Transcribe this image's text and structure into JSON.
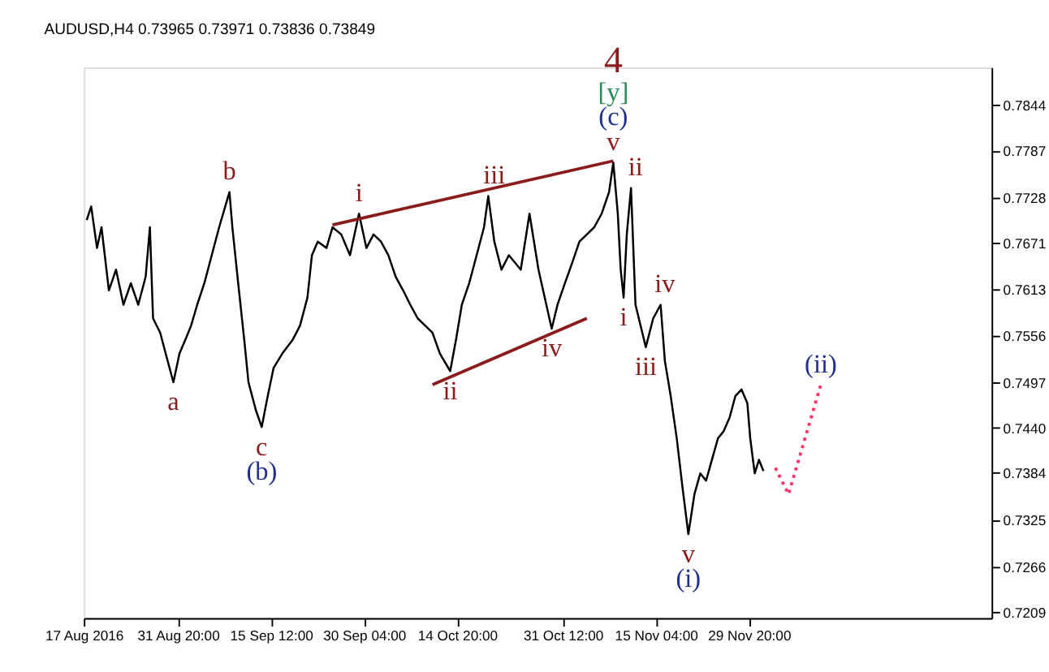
{
  "chart_data": {
    "type": "line",
    "title": "AUDUSD,H4  0.73965 0.73971 0.73836 0.73849",
    "xlim": [
      "2016-08-17T00:00",
      "2017-01-07T02:00"
    ],
    "xticks": [
      {
        "value": "2016-08-17T00:00",
        "label": "17 Aug 2016"
      },
      {
        "value": "2016-08-31T20:00",
        "label": "31 Aug 20:00"
      },
      {
        "value": "2016-09-15T12:00",
        "label": "15 Sep 12:00"
      },
      {
        "value": "2016-09-30T04:00",
        "label": "30 Sep 04:00"
      },
      {
        "value": "2016-10-14T20:00",
        "label": "14 Oct 20:00"
      },
      {
        "value": "2016-10-31T12:00",
        "label": "31 Oct 12:00"
      },
      {
        "value": "2016-11-15T04:00",
        "label": "15 Nov 04:00"
      },
      {
        "value": "2016-11-29T20:00",
        "label": "29 Nov 20:00"
      }
    ],
    "ylim": [
      0.7202,
      0.7891
    ],
    "yticks": [
      0.7209,
      0.7266,
      0.7325,
      0.7384,
      {
        "value": 0.744,
        "label": "0.7440"
      },
      0.7497,
      0.7556,
      0.7613,
      0.7671,
      0.7728,
      0.7787,
      0.7844
    ],
    "grid": false,
    "marker": "none",
    "series": [
      {
        "color": "#000000",
        "x": [
          "2016-08-17T11:00",
          "2016-08-18T04:00",
          "2016-08-19T02:00",
          "2016-08-19T19:00",
          "2016-08-20T23:00",
          "2016-08-22T02:00",
          "2016-08-23T06:00",
          "2016-08-24T10:00",
          "2016-08-25T14:00",
          "2016-08-26T18:00",
          "2016-08-27T10:00",
          "2016-08-27T22:00",
          "2016-08-29T01:00",
          "2016-08-30T05:00",
          "2016-08-31T03:00",
          "2016-09-01T02:00",
          "2016-09-02T00:00",
          "2016-09-02T22:00",
          "2016-09-03T21:00",
          "2016-09-05T00:00",
          "2016-09-06T04:00",
          "2016-09-07T08:00",
          "2016-09-08T23:00",
          "2016-09-09T10:00",
          "2016-09-10T08:00",
          "2016-09-11T07:00",
          "2016-09-11T23:00",
          "2016-09-13T03:00",
          "2016-09-14T01:00",
          "2016-09-15T00:00",
          "2016-09-15T22:00",
          "2016-09-17T07:00",
          "2016-09-18T22:00",
          "2016-09-20T02:00",
          "2016-09-21T06:00",
          "2016-09-21T23:00",
          "2016-09-22T21:00",
          "2016-09-24T06:00",
          "2016-09-25T05:00",
          "2016-09-26T14:00",
          "2016-09-27T23:00",
          "2016-09-29T09:00",
          "2016-09-30T13:00",
          "2016-10-01T16:00",
          "2016-10-02T20:00",
          "2016-10-04T00:00",
          "2016-10-05T04:00",
          "2016-10-06T08:00",
          "2016-10-07T11:00",
          "2016-10-08T15:00",
          "2016-10-09T19:00",
          "2016-10-10T23:00",
          "2016-10-12T03:00",
          "2016-10-13T18:00",
          "2016-10-14T16:00",
          "2016-10-15T14:00",
          "2016-10-16T18:00",
          "2016-10-17T22:00",
          "2016-10-19T02:00",
          "2016-10-19T18:00",
          "2016-10-20T17:00",
          "2016-10-21T20:00",
          "2016-10-23T00:00",
          "2016-10-24T21:00",
          "2016-10-26T06:00",
          "2016-10-27T16:00",
          "2016-10-29T18:00",
          "2016-10-30T16:00",
          "2016-10-31T20:00",
          "2016-11-02T00:00",
          "2016-11-03T03:00",
          "2016-11-04T07:00",
          "2016-11-05T11:00",
          "2016-11-06T15:00",
          "2016-11-07T19:00",
          "2016-11-08T11:00",
          "2016-11-09T04:00",
          "2016-11-09T15:00",
          "2016-11-10T02:00",
          "2016-11-10T14:00",
          "2016-11-11T06:00",
          "2016-11-11T23:00",
          "2016-11-13T14:00",
          "2016-11-14T18:00",
          "2016-11-15T22:00",
          "2016-11-16T14:00",
          "2016-11-17T12:00",
          "2016-11-18T11:00",
          "2016-11-19T09:00",
          "2016-11-20T07:00",
          "2016-11-21T06:00",
          "2016-11-22T04:00",
          "2016-11-23T02:00",
          "2016-11-24T00:00",
          "2016-11-24T23:00",
          "2016-11-25T21:00",
          "2016-11-26T19:00",
          "2016-11-27T17:00",
          "2016-11-28T16:00",
          "2016-11-29T14:00",
          "2016-11-30T01:00",
          "2016-11-30T18:00",
          "2016-12-01T10:00",
          "2016-12-02T03:00"
        ],
        "values": [
          0.77,
          0.7717,
          0.7665,
          0.7691,
          0.7612,
          0.7638,
          0.7594,
          0.7621,
          0.7594,
          0.7629,
          0.7691,
          0.7577,
          0.7559,
          0.7524,
          0.7497,
          0.7533,
          0.755,
          0.7568,
          0.7594,
          0.7621,
          0.7656,
          0.7691,
          0.7735,
          0.7691,
          0.7621,
          0.755,
          0.7497,
          0.7462,
          0.7441,
          0.748,
          0.7515,
          0.7533,
          0.755,
          0.7568,
          0.7603,
          0.7656,
          0.7673,
          0.7665,
          0.7691,
          0.7682,
          0.7656,
          0.7708,
          0.7665,
          0.7682,
          0.7673,
          0.7656,
          0.7629,
          0.7612,
          0.7594,
          0.7577,
          0.7568,
          0.7559,
          0.7533,
          0.7511,
          0.755,
          0.7594,
          0.7621,
          0.7656,
          0.7691,
          0.773,
          0.7673,
          0.7638,
          0.7656,
          0.7638,
          0.7708,
          0.7638,
          0.7564,
          0.7594,
          0.7621,
          0.7647,
          0.7673,
          0.7682,
          0.7691,
          0.7708,
          0.7735,
          0.7772,
          0.7708,
          0.7638,
          0.7603,
          0.7682,
          0.774,
          0.7594,
          0.7541,
          0.7577,
          0.7594,
          0.7524,
          0.748,
          0.7427,
          0.7365,
          0.7307,
          0.7357,
          0.7383,
          0.7374,
          0.74,
          0.7427,
          0.7436,
          0.7453,
          0.748,
          0.7488,
          0.7471,
          0.7427,
          0.7383,
          0.74,
          0.7386
        ]
      },
      {
        "color": "#8b1a1a",
        "x": [
          "2016-09-25T05:00",
          "2016-11-08T11:00"
        ],
        "values": [
          0.7694,
          0.7774
        ]
      },
      {
        "color": "#8b1a1a",
        "x": [
          "2016-10-10T23:00",
          "2016-11-04T07:00"
        ],
        "values": [
          0.7494,
          0.7577
        ]
      },
      {
        "color": "#ff3366",
        "line_style": "dotted",
        "x": [
          "2016-12-04T00:00",
          "2016-12-06T02:00",
          "2016-12-11T04:00"
        ],
        "values": [
          0.739,
          0.7357,
          0.7494
        ]
      }
    ],
    "annotations": [
      {
        "text": "4",
        "x": "2016-11-08T11:00",
        "y": 0.7772
      },
      {
        "text": "[y]",
        "x": "2016-11-08T11:00",
        "y": 0.7772
      },
      {
        "text": "(c)",
        "x": "2016-11-08T11:00",
        "y": 0.7772
      },
      {
        "text": "v",
        "x": "2016-11-08T11:00",
        "y": 0.7772
      },
      {
        "text": "ii",
        "x": "2016-11-11T23:00",
        "y": 0.774
      },
      {
        "text": "b",
        "x": "2016-09-08T23:00",
        "y": 0.7735
      },
      {
        "text": "i",
        "x": "2016-09-29T09:00",
        "y": 0.7708
      },
      {
        "text": "iii",
        "x": "2016-10-20T17:00",
        "y": 0.773
      },
      {
        "text": "a",
        "x": "2016-08-31T03:00",
        "y": 0.7497
      },
      {
        "text": "c",
        "x": "2016-09-14T01:00",
        "y": 0.7441
      },
      {
        "text": "(b)",
        "x": "2016-09-14T01:00",
        "y": 0.7441
      },
      {
        "text": "ii",
        "x": "2016-10-13T18:00",
        "y": 0.7511
      },
      {
        "text": "iv",
        "x": "2016-10-29T18:00",
        "y": 0.7564
      },
      {
        "text": "i",
        "x": "2016-11-10T02:00",
        "y": 0.7603
      },
      {
        "text": "iv",
        "x": "2016-11-16T14:00",
        "y": 0.7594
      },
      {
        "text": "iii",
        "x": "2016-11-13T14:00",
        "y": 0.7541
      },
      {
        "text": "(ii)",
        "x": "2016-12-11T04:00",
        "y": 0.7494
      },
      {
        "text": "v",
        "x": "2016-11-20T07:00",
        "y": 0.7307
      },
      {
        "text": "(i)",
        "x": "2016-11-20T07:00",
        "y": 0.7307
      }
    ]
  }
}
